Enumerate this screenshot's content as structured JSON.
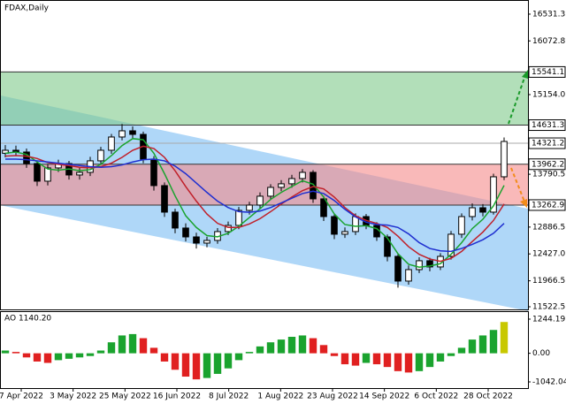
{
  "chart_data": {
    "type": "candlestick",
    "title": "FDAX,Daily",
    "open": [
      14150,
      14201,
      14171,
      13974,
      13672,
      13899,
      13974,
      13778,
      13823,
      14020,
      14201,
      14428,
      14534,
      14473,
      14050,
      13596,
      13142,
      12870,
      12718,
      12612,
      12658,
      12809,
      12915,
      13172,
      13263,
      13415,
      13566,
      13627,
      13717,
      13823,
      13369,
      13066,
      12764,
      12809,
      13066,
      12915,
      12718,
      12385,
      11962,
      12158,
      12310,
      12204,
      12385,
      12764,
      13066,
      13217,
      13142,
      13747
    ],
    "high": [
      14290,
      14280,
      14230,
      14010,
      13960,
      14040,
      14020,
      13900,
      14090,
      14260,
      14480,
      14650,
      14610,
      14520,
      14100,
      13650,
      13200,
      12950,
      12790,
      12720,
      12870,
      12980,
      13230,
      13320,
      13480,
      13620,
      13690,
      13780,
      13880,
      13860,
      13420,
      13120,
      12880,
      13120,
      13110,
      12970,
      12760,
      12430,
      12230,
      12370,
      12360,
      12440,
      12820,
      13120,
      13290,
      13280,
      13800,
      14420
    ],
    "low": [
      14080,
      14100,
      13900,
      13590,
      13600,
      13830,
      13700,
      13700,
      13760,
      13960,
      14140,
      14370,
      14400,
      13980,
      13510,
      13060,
      12780,
      12640,
      12520,
      12540,
      12600,
      12750,
      12850,
      13100,
      13200,
      13350,
      13500,
      13560,
      13650,
      13300,
      12990,
      12680,
      12700,
      12750,
      12850,
      12650,
      12300,
      11850,
      11900,
      12100,
      12130,
      12150,
      12330,
      12700,
      13000,
      13070,
      13100,
      13690
    ],
    "close": [
      14201,
      14171,
      13974,
      13672,
      13899,
      13974,
      13778,
      13823,
      14020,
      14201,
      14428,
      14534,
      14473,
      14050,
      13596,
      13142,
      12870,
      12718,
      12612,
      12658,
      12809,
      12915,
      13172,
      13263,
      13415,
      13566,
      13627,
      13717,
      13823,
      13369,
      13066,
      12764,
      12809,
      13066,
      12915,
      12718,
      12385,
      11962,
      12158,
      12310,
      12204,
      12385,
      12764,
      13066,
      13217,
      13142,
      13747,
      14352
    ],
    "up_color": "#ffffff",
    "down_color": "#000000",
    "moving_averages": [
      {
        "color": "#1aa32e",
        "values": [
          14150,
          14170,
          14130,
          14000,
          13880,
          13860,
          13880,
          13850,
          13870,
          13960,
          14110,
          14280,
          14400,
          14380,
          14150,
          13800,
          13420,
          13080,
          12880,
          12740,
          12720,
          12780,
          12900,
          13050,
          13200,
          13360,
          13480,
          13580,
          13680,
          13620,
          13400,
          13110,
          12930,
          12900,
          12910,
          12860,
          12700,
          12430,
          12250,
          12200,
          12220,
          12260,
          12420,
          12620,
          12860,
          13020,
          13250,
          13600
        ]
      },
      {
        "color": "#c0202a",
        "values": [
          14100,
          14110,
          14100,
          14060,
          13990,
          13960,
          13940,
          13910,
          13900,
          13920,
          13980,
          14080,
          14200,
          14270,
          14230,
          14080,
          13850,
          13580,
          13330,
          13110,
          12950,
          12880,
          12880,
          12940,
          13030,
          13150,
          13280,
          13400,
          13510,
          13580,
          13540,
          13400,
          13220,
          13080,
          13000,
          12950,
          12880,
          12730,
          12550,
          12420,
          12340,
          12300,
          12350,
          12470,
          12640,
          12800,
          13000,
          13280
        ]
      },
      {
        "color": "#1f2fd0",
        "values": [
          14050,
          14050,
          14040,
          14020,
          14000,
          13980,
          13960,
          13940,
          13920,
          13910,
          13920,
          13950,
          14000,
          14040,
          14050,
          14020,
          13930,
          13800,
          13640,
          13480,
          13330,
          13220,
          13150,
          13140,
          13160,
          13220,
          13300,
          13380,
          13460,
          13500,
          13460,
          13340,
          13190,
          13060,
          12970,
          12930,
          12920,
          12880,
          12770,
          12620,
          12520,
          12480,
          12470,
          12520,
          12590,
          12670,
          12780,
          12950
        ]
      }
    ],
    "ylim": [
      11477,
      16773
    ],
    "yticks": [
      16531.3,
      16072.8,
      {
        "value": 15154,
        "label": "15154.0"
      },
      13790.5,
      12886.5,
      {
        "value": 12427,
        "label": "12427.0"
      },
      11966.5,
      11522.5
    ],
    "zones": [
      {
        "top": 15541.1,
        "bottom": 14631.3,
        "color": "#7fc98a"
      },
      {
        "top": 13962.2,
        "bottom": 13262.9,
        "color": "#f58a8a"
      }
    ],
    "last_price": 14321.2,
    "channel": {
      "upper": [
        15140,
        13200
      ],
      "lower": [
        13260,
        11450
      ],
      "color": "#a6d3f7"
    },
    "x_labels": [
      "7 Apr 2022",
      "3 May 2022",
      "25 May 2022",
      "16 Jun 2022",
      "8 Jul 2022",
      "1 Aug 2022",
      "23 Aug 2022",
      "14 Sep 2022",
      "6 Oct 2022",
      "28 Oct 2022"
    ],
    "indicator": {
      "label": "AO 1140.20",
      "values": [
        100,
        50,
        -150,
        -300,
        -350,
        -250,
        -200,
        -150,
        -100,
        100,
        400,
        650,
        700,
        550,
        200,
        -300,
        -600,
        -850,
        -950,
        -900,
        -750,
        -550,
        -250,
        50,
        250,
        400,
        500,
        600,
        650,
        550,
        300,
        -100,
        -400,
        -450,
        -350,
        -400,
        -500,
        -650,
        -700,
        -650,
        -500,
        -300,
        -100,
        200,
        500,
        650,
        850,
        1140
      ],
      "up_color": "#1aa32e",
      "down_color": "#e02020",
      "last_color": "#c8c800",
      "ylim": [
        -1300,
        1534
      ],
      "yticks": [
        1244.19,
        {
          "value": 0,
          "label": "0.00"
        },
        -1042.04
      ]
    }
  }
}
